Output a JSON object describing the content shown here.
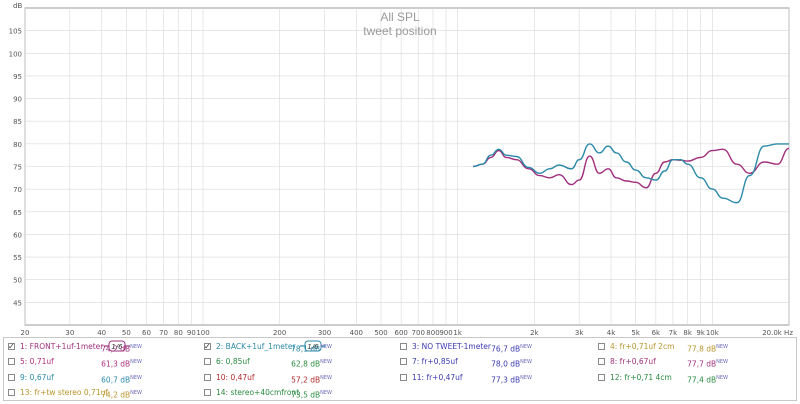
{
  "chart_data": {
    "type": "line",
    "title": "All SPL",
    "subtitle": "tweet position",
    "ylabel": "dB",
    "xlabel": "",
    "x_scale": "log",
    "xlim": [
      20,
      20000
    ],
    "ylim": [
      40,
      110
    ],
    "grid": true,
    "y_ticks": [
      45,
      50,
      55,
      60,
      65,
      70,
      75,
      80,
      85,
      90,
      95,
      100,
      105
    ],
    "y_tick_labels": [
      "45",
      "50",
      "55",
      "60",
      "65",
      "70",
      "75",
      "80",
      "85",
      "90",
      "95",
      "100",
      "105"
    ],
    "x_ticks": [
      20,
      30,
      40,
      50,
      60,
      70,
      80,
      90,
      100,
      200,
      300,
      400,
      500,
      600,
      700,
      800,
      900,
      1000,
      2000,
      3000,
      4000,
      5000,
      6000,
      7000,
      8000,
      9000,
      10000,
      20000
    ],
    "x_tick_labels": [
      "20",
      "30",
      "40",
      "50",
      "60",
      "70",
      "80",
      "90",
      "100",
      "200",
      "300",
      "400",
      "500",
      "600",
      "700",
      "800",
      "900",
      "1k",
      "2k",
      "3k",
      "4k",
      "5k",
      "6k",
      "7k",
      "8k",
      "9k",
      "10k",
      "20.0k Hz"
    ],
    "series": [
      {
        "name": "1: FRONT+1uf-1meter",
        "color": "#a0307e",
        "x": [
          1150,
          1250,
          1350,
          1450,
          1550,
          1700,
          1900,
          2100,
          2300,
          2500,
          2800,
          3000,
          3300,
          3600,
          3900,
          4200,
          4600,
          5000,
          5500,
          6000,
          6500,
          7000,
          7500,
          8000,
          9000,
          10000,
          11000,
          12500,
          14000,
          16000,
          18000,
          20000
        ],
        "y": [
          75,
          75.5,
          77,
          78.5,
          77,
          76.5,
          74.5,
          73,
          72.5,
          73.2,
          71,
          72,
          77.3,
          73.5,
          74.5,
          72.5,
          71.8,
          71.5,
          70.3,
          73.5,
          76,
          76.5,
          76.4,
          76.2,
          77,
          78.5,
          78.8,
          75.5,
          73.5,
          76,
          75.5,
          79
        ]
      },
      {
        "name": "2: BACK+1uf_1meter",
        "color": "#2a8aa8",
        "x": [
          1150,
          1250,
          1350,
          1450,
          1550,
          1700,
          1900,
          2100,
          2300,
          2500,
          2800,
          3000,
          3300,
          3600,
          3900,
          4200,
          4600,
          5000,
          5500,
          6000,
          6500,
          7000,
          7500,
          8000,
          9000,
          10000,
          11000,
          12500,
          14000,
          16000,
          18000,
          20000
        ],
        "y": [
          75,
          75.5,
          77.5,
          78.8,
          77.5,
          77.2,
          74.8,
          73.5,
          74.5,
          75.3,
          74.5,
          76.5,
          80,
          78,
          79.5,
          78,
          76,
          74.2,
          72.5,
          72,
          74,
          76.5,
          76.5,
          75.5,
          72.5,
          70,
          68,
          67,
          73,
          79.5,
          80,
          80
        ]
      }
    ],
    "legend": [
      {
        "label": "1: FRONT+1uf-1meter",
        "value": "74,2 dB",
        "checked": true,
        "color": "#a0307e",
        "smoothing": "1/6"
      },
      {
        "label": "2: BACK+1uf_1meter",
        "value": "78,1 dB",
        "checked": true,
        "color": "#2a8aa8",
        "smoothing": "1/6"
      },
      {
        "label": "3: NO TWEET-1meter",
        "value": "76,7 dB",
        "checked": false,
        "color": "#3a3ab0"
      },
      {
        "label": "4: fr+0,71uf 2cm",
        "value": "77,8 dB",
        "checked": false,
        "color": "#b8952a"
      },
      {
        "label": "5: 0,71uf",
        "value": "61,3 dB",
        "checked": false,
        "color": "#b0307e"
      },
      {
        "label": "6: 0,85uf",
        "value": "62,8 dB",
        "checked": false,
        "color": "#2a8a40"
      },
      {
        "label": "7: fr+0,85uf",
        "value": "78,0 dB",
        "checked": false,
        "color": "#3a3ab0"
      },
      {
        "label": "8: fr+0,67uf",
        "value": "77,7 dB",
        "checked": false,
        "color": "#a0307e"
      },
      {
        "label": "9: 0,67uf",
        "value": "60,7 dB",
        "checked": false,
        "color": "#2a8aa8"
      },
      {
        "label": "10: 0,47uf",
        "value": "57,2 dB",
        "checked": false,
        "color": "#b02a2a"
      },
      {
        "label": "11: fr+0,47uf",
        "value": "77,3 dB",
        "checked": false,
        "color": "#3a3ab0"
      },
      {
        "label": "12: fr+0,71 4cm",
        "value": "77,4 dB",
        "checked": false,
        "color": "#2a8a40"
      },
      {
        "label": "13: fr+tw  stereo 0,71uf",
        "value": "74,2 dB",
        "checked": false,
        "color": "#b8952a"
      },
      {
        "label": "14: stereo+40cmfront",
        "value": "73,5 dB",
        "checked": false,
        "color": "#2a8a40"
      }
    ],
    "value_superscript": "NEW"
  }
}
